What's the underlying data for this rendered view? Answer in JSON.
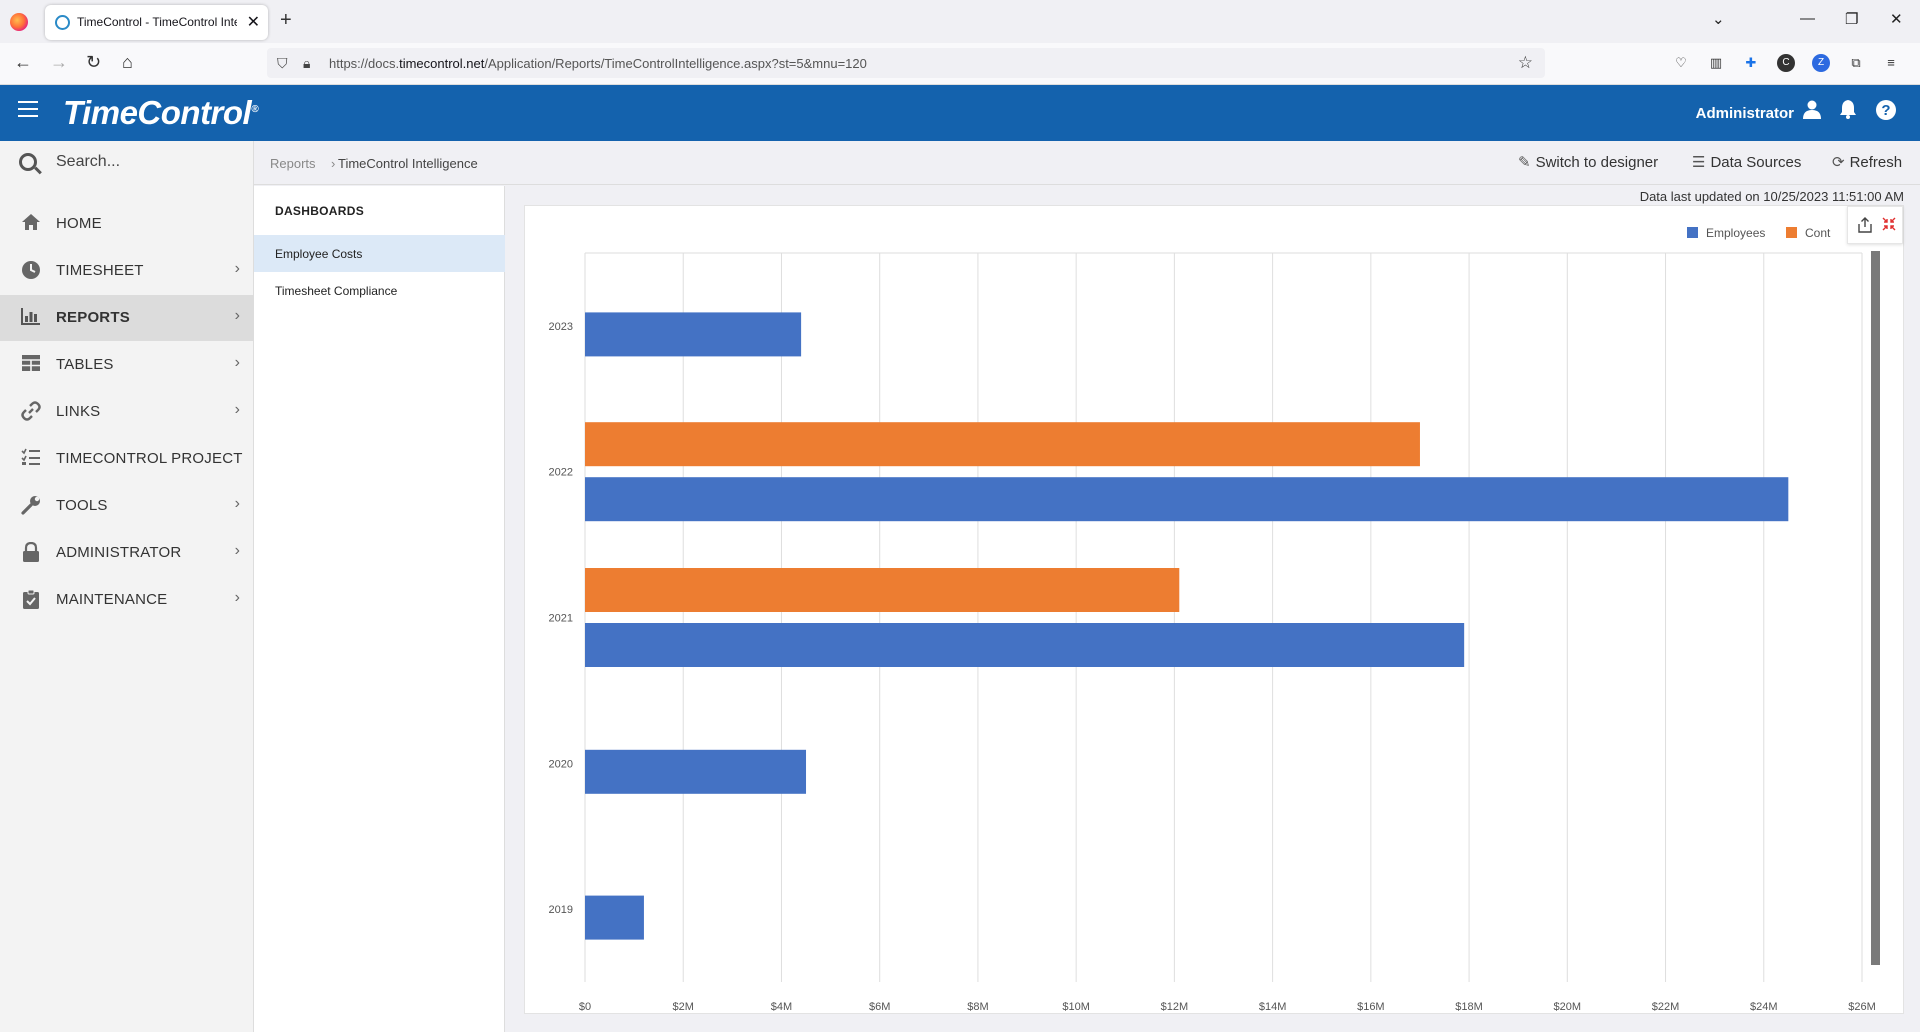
{
  "browser": {
    "tab_title": "TimeControl - TimeControl Intelligence",
    "url_prefix": "https://docs.",
    "url_domain": "timecontrol.net",
    "url_path": "/Application/Reports/TimeControlIntelligence.aspx?st=5&mnu=120"
  },
  "header": {
    "logo": "TimeControl",
    "user": "Administrator"
  },
  "sidebar": {
    "search_placeholder": "Search...",
    "items": [
      {
        "label": "HOME",
        "icon": "home-icon",
        "chevron": false
      },
      {
        "label": "TIMESHEET",
        "icon": "clock-icon",
        "chevron": true
      },
      {
        "label": "REPORTS",
        "icon": "bar-chart-icon",
        "chevron": true,
        "active": true
      },
      {
        "label": "TABLES",
        "icon": "table-icon",
        "chevron": true
      },
      {
        "label": "LINKS",
        "icon": "link-icon",
        "chevron": true
      },
      {
        "label": "TIMECONTROL PROJECT",
        "icon": "tasks-icon",
        "chevron": false
      },
      {
        "label": "TOOLS",
        "icon": "wrench-icon",
        "chevron": true
      },
      {
        "label": "ADMINISTRATOR",
        "icon": "lock-icon",
        "chevron": true
      },
      {
        "label": "MAINTENANCE",
        "icon": "clipboard-check-icon",
        "chevron": true
      }
    ]
  },
  "breadcrumb": {
    "parent": "Reports",
    "current": "TimeControl Intelligence"
  },
  "toolbar": {
    "switch_designer": "Switch to designer",
    "data_sources": "Data Sources",
    "refresh": "Refresh"
  },
  "dashboards": {
    "title": "DASHBOARDS",
    "items": [
      "Employee Costs",
      "Timesheet Compliance"
    ]
  },
  "data_updated": "Data last updated on 10/25/2023 11:51:00 AM",
  "chart_data": {
    "type": "bar",
    "orientation": "horizontal",
    "categories": [
      "2023",
      "2022",
      "2021",
      "2020",
      "2019"
    ],
    "series": [
      {
        "name": "Employees",
        "color": "#4472c4",
        "values": [
          4.4,
          24.5,
          17.9,
          4.5,
          1.2
        ]
      },
      {
        "name": "Cont",
        "color": "#ed7d31",
        "values": [
          null,
          17.0,
          12.1,
          null,
          null
        ]
      }
    ],
    "x_ticks": [
      "$0",
      "$2M",
      "$4M",
      "$6M",
      "$8M",
      "$10M",
      "$12M",
      "$14M",
      "$16M",
      "$18M",
      "$20M",
      "$22M",
      "$24M",
      "$26M"
    ],
    "xlim": [
      0,
      26
    ],
    "x_unit": "millions of dollars",
    "grid": true,
    "legend_position": "top-right"
  }
}
